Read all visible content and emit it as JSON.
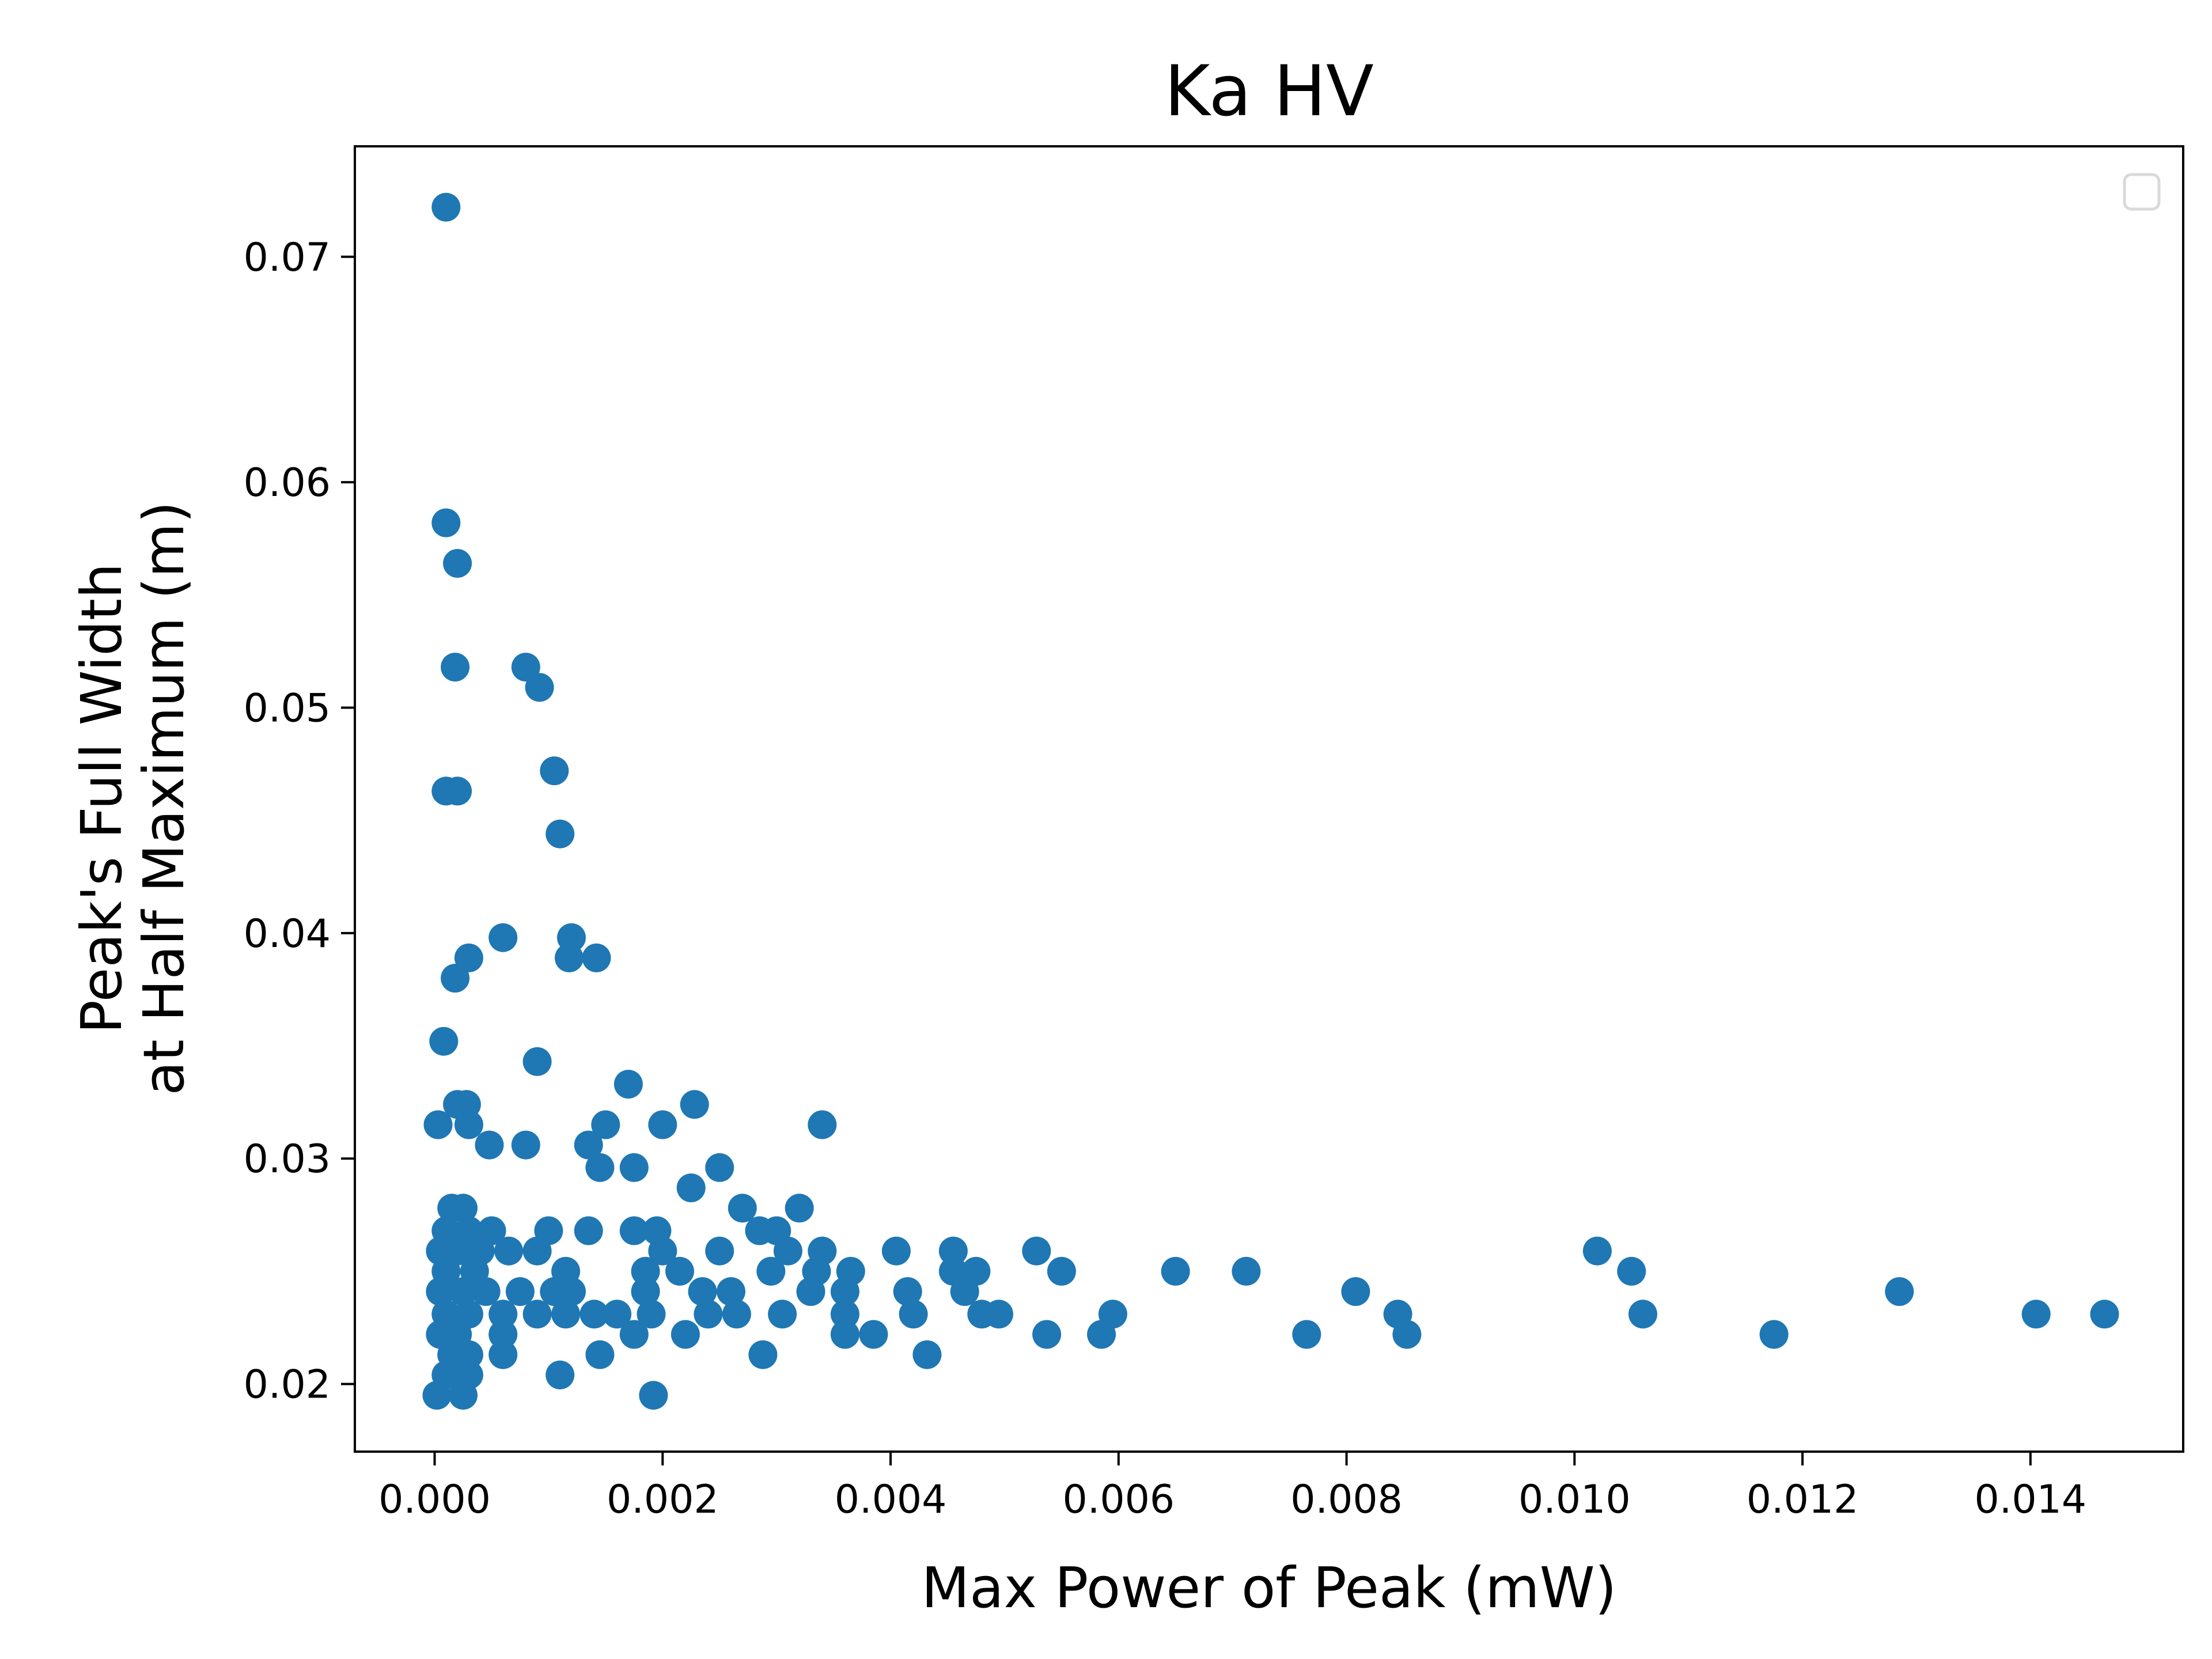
{
  "chart_data": {
    "type": "scatter",
    "title": "Ka HV",
    "xlabel": "Max Power of Peak (mW)",
    "ylabel_lines": [
      "Peak's Full Width",
      "at Half Maximum (m)"
    ],
    "xlim": [
      -0.0007,
      0.01534
    ],
    "ylim": [
      0.017,
      0.0749
    ],
    "xticks": [
      0.0,
      0.002,
      0.004,
      0.006,
      0.008,
      0.01,
      0.012,
      0.014
    ],
    "xtick_labels": [
      "0.000",
      "0.002",
      "0.004",
      "0.006",
      "0.008",
      "0.010",
      "0.012",
      "0.014"
    ],
    "yticks": [
      0.02,
      0.03,
      0.04,
      0.05,
      0.06,
      0.07
    ],
    "ytick_labels": [
      "0.02",
      "0.03",
      "0.04",
      "0.05",
      "0.06",
      "0.07"
    ],
    "grid": false,
    "legend": "top-right (empty)",
    "marker_color": "#1f77b4",
    "points": [
      [
        0.0001,
        0.0722
      ],
      [
        0.0001,
        0.0582
      ],
      [
        0.0002,
        0.0564
      ],
      [
        0.00018,
        0.0518
      ],
      [
        0.0008,
        0.0518
      ],
      [
        0.00092,
        0.0509
      ],
      [
        0.0001,
        0.0463
      ],
      [
        0.0002,
        0.0463
      ],
      [
        0.00105,
        0.0472
      ],
      [
        0.0011,
        0.0444
      ],
      [
        0.0006,
        0.0398
      ],
      [
        0.0012,
        0.0398
      ],
      [
        0.0003,
        0.0389
      ],
      [
        0.00118,
        0.0389
      ],
      [
        0.00142,
        0.0389
      ],
      [
        0.00018,
        0.038
      ],
      [
        8e-05,
        0.0352
      ],
      [
        0.0009,
        0.0343
      ],
      [
        0.0017,
        0.0333
      ],
      [
        0.0002,
        0.0324
      ],
      [
        0.00028,
        0.0324
      ],
      [
        0.00228,
        0.0324
      ],
      [
        3e-05,
        0.0315
      ],
      [
        0.0003,
        0.0315
      ],
      [
        0.0015,
        0.0315
      ],
      [
        0.002,
        0.0315
      ],
      [
        0.0034,
        0.0315
      ],
      [
        0.00048,
        0.0306
      ],
      [
        0.0008,
        0.0306
      ],
      [
        0.00135,
        0.0306
      ],
      [
        0.00145,
        0.0296
      ],
      [
        0.00175,
        0.0296
      ],
      [
        0.0025,
        0.0296
      ],
      [
        0.00225,
        0.0287
      ],
      [
        0.00015,
        0.0278
      ],
      [
        0.00025,
        0.0278
      ],
      [
        0.0027,
        0.0278
      ],
      [
        0.0032,
        0.0278
      ],
      [
        0.0001,
        0.0268
      ],
      [
        0.0003,
        0.0268
      ],
      [
        0.0005,
        0.0268
      ],
      [
        0.001,
        0.0268
      ],
      [
        0.00135,
        0.0268
      ],
      [
        0.00175,
        0.0268
      ],
      [
        0.00195,
        0.0268
      ],
      [
        0.00285,
        0.0268
      ],
      [
        0.003,
        0.0268
      ],
      [
        5e-05,
        0.0259
      ],
      [
        0.0002,
        0.0259
      ],
      [
        0.0004,
        0.0259
      ],
      [
        0.00065,
        0.0259
      ],
      [
        0.0009,
        0.0259
      ],
      [
        0.002,
        0.0259
      ],
      [
        0.0025,
        0.0259
      ],
      [
        0.0031,
        0.0259
      ],
      [
        0.0034,
        0.0259
      ],
      [
        0.00405,
        0.0259
      ],
      [
        0.00455,
        0.0259
      ],
      [
        0.00528,
        0.0259
      ],
      [
        0.0102,
        0.0259
      ],
      [
        0.0001,
        0.025
      ],
      [
        0.00035,
        0.025
      ],
      [
        0.00115,
        0.025
      ],
      [
        0.00185,
        0.025
      ],
      [
        0.00215,
        0.025
      ],
      [
        0.00295,
        0.025
      ],
      [
        0.00335,
        0.025
      ],
      [
        0.00365,
        0.025
      ],
      [
        0.00455,
        0.025
      ],
      [
        0.00475,
        0.025
      ],
      [
        0.0055,
        0.025
      ],
      [
        0.0065,
        0.025
      ],
      [
        0.00712,
        0.025
      ],
      [
        0.0105,
        0.025
      ],
      [
        5e-05,
        0.0241
      ],
      [
        0.00025,
        0.0241
      ],
      [
        0.00045,
        0.0241
      ],
      [
        0.00075,
        0.0241
      ],
      [
        0.00105,
        0.0241
      ],
      [
        0.0012,
        0.0241
      ],
      [
        0.00185,
        0.0241
      ],
      [
        0.00235,
        0.0241
      ],
      [
        0.0026,
        0.0241
      ],
      [
        0.0033,
        0.0241
      ],
      [
        0.0036,
        0.0241
      ],
      [
        0.00415,
        0.0241
      ],
      [
        0.00465,
        0.0241
      ],
      [
        0.00808,
        0.0241
      ],
      [
        0.01285,
        0.0241
      ],
      [
        0.0001,
        0.0231
      ],
      [
        0.0003,
        0.0231
      ],
      [
        0.0006,
        0.0231
      ],
      [
        0.0009,
        0.0231
      ],
      [
        0.00115,
        0.0231
      ],
      [
        0.0014,
        0.0231
      ],
      [
        0.0016,
        0.0231
      ],
      [
        0.0019,
        0.0231
      ],
      [
        0.0024,
        0.0231
      ],
      [
        0.00265,
        0.0231
      ],
      [
        0.00305,
        0.0231
      ],
      [
        0.0036,
        0.0231
      ],
      [
        0.0042,
        0.0231
      ],
      [
        0.0048,
        0.0231
      ],
      [
        0.00495,
        0.0231
      ],
      [
        0.00595,
        0.0231
      ],
      [
        0.00845,
        0.0231
      ],
      [
        0.0106,
        0.0231
      ],
      [
        0.01405,
        0.0231
      ],
      [
        0.01465,
        0.0231
      ],
      [
        5e-05,
        0.0222
      ],
      [
        0.0002,
        0.0222
      ],
      [
        0.0006,
        0.0222
      ],
      [
        0.00175,
        0.0222
      ],
      [
        0.0022,
        0.0222
      ],
      [
        0.0036,
        0.0222
      ],
      [
        0.00385,
        0.0222
      ],
      [
        0.00537,
        0.0222
      ],
      [
        0.00585,
        0.0222
      ],
      [
        0.00765,
        0.0222
      ],
      [
        0.00853,
        0.0222
      ],
      [
        0.01175,
        0.0222
      ],
      [
        0.00015,
        0.0213
      ],
      [
        0.0003,
        0.0213
      ],
      [
        0.0006,
        0.0213
      ],
      [
        0.00145,
        0.0213
      ],
      [
        0.00288,
        0.0213
      ],
      [
        0.00432,
        0.0213
      ],
      [
        0.0001,
        0.0204
      ],
      [
        0.0003,
        0.0204
      ],
      [
        0.0011,
        0.0204
      ],
      [
        2e-05,
        0.0195
      ],
      [
        0.00025,
        0.0195
      ],
      [
        0.00192,
        0.0195
      ]
    ]
  }
}
